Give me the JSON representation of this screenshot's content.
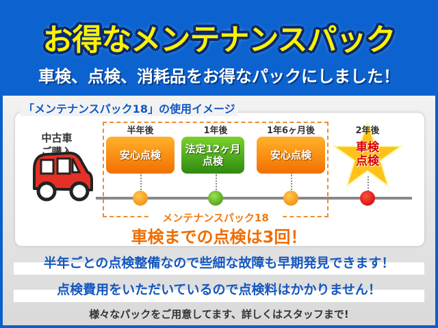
{
  "header": {
    "title": "お得なメンテナンスパック",
    "subtitle": "車検、点検、消耗品をお得なパックにしました！"
  },
  "section_title": "「メンテナンスパック18」の使用イメージ",
  "start": {
    "label_line1": "中古車",
    "label_line2": "ご購入"
  },
  "milestones": [
    {
      "time": "半年後",
      "box_line1": "安心点検",
      "box_line2": "",
      "color": "#f5820a"
    },
    {
      "time": "1年後",
      "box_line1": "法定12ヶ月",
      "box_line2": "点検",
      "color": "#4aa81c"
    },
    {
      "time": "1年6ヶ月後",
      "box_line1": "安心点検",
      "box_line2": "",
      "color": "#f5820a"
    },
    {
      "time": "2年後",
      "box_line1": "車検",
      "box_line2": "点検",
      "color": "#d80000"
    }
  ],
  "pack": {
    "label": "メンテナンスパック18",
    "count_text": "車検までの点検は3回！"
  },
  "benefits": [
    "半年ごとの点検整備なので些細な故障も早期発見できます！",
    "点検費用をいただいているので点検料はかかりません！"
  ],
  "footer": "様々なパックをご用意してます、詳しくはスタッフまで!"
}
